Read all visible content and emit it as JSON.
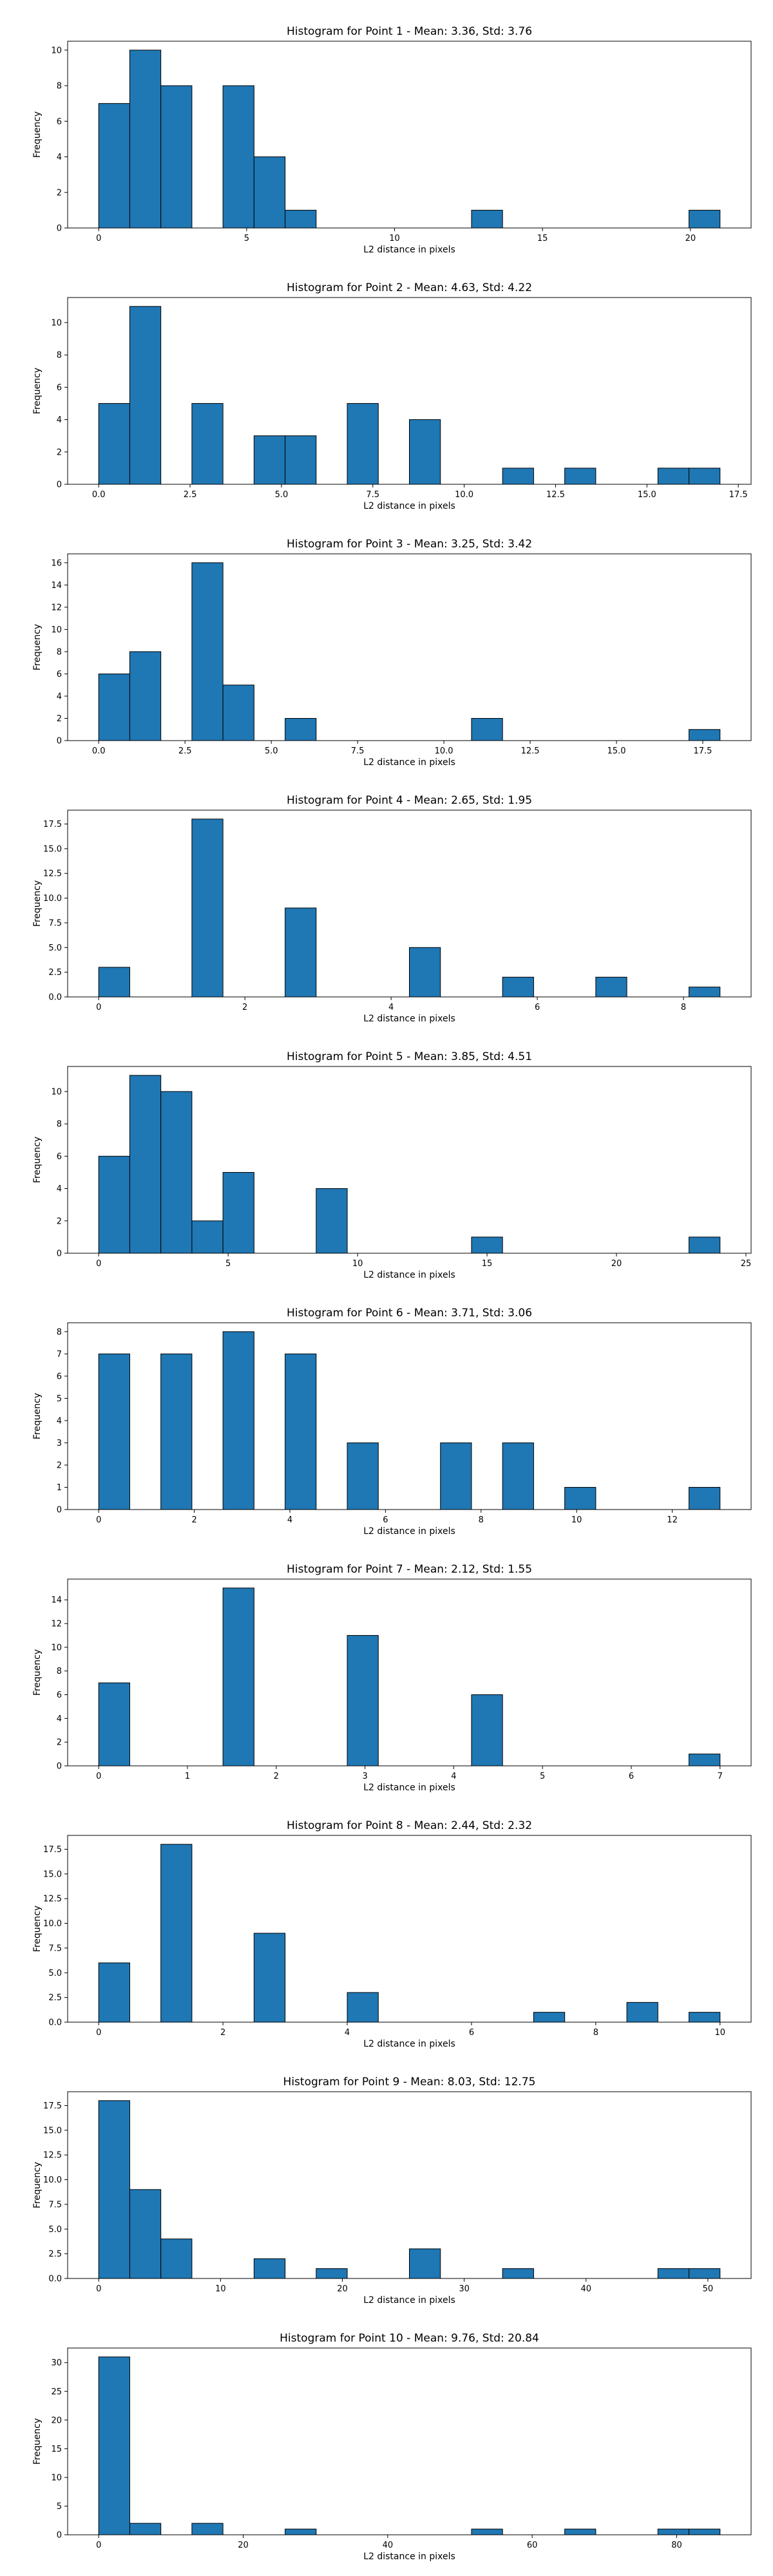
{
  "figure": {
    "background": "#ffffff",
    "bar_color": "#1f77b4",
    "edge_color": "#000000"
  },
  "chart_data": [
    {
      "type": "bar",
      "title": "Histogram for Point 1 - Mean: 3.36, Std: 3.76",
      "xlabel": "L2 distance in pixels",
      "ylabel": "Frequency",
      "xlim": [
        -1.05,
        22.05
      ],
      "ylim": [
        0,
        10.5
      ],
      "xticks": [
        0,
        5,
        10,
        15,
        20
      ],
      "xtick_labels": [
        "0",
        "5",
        "10",
        "15",
        "20"
      ],
      "yticks": [
        0,
        2,
        4,
        6,
        8,
        10
      ],
      "ytick_labels": [
        "0",
        "2",
        "4",
        "6",
        "8",
        "10"
      ],
      "bin_edges": [
        0,
        1.05,
        2.1,
        3.15,
        4.2,
        5.25,
        6.3,
        7.35,
        8.4,
        9.45,
        10.5,
        11.55,
        12.6,
        13.65,
        14.7,
        15.75,
        16.8,
        17.85,
        18.9,
        19.95,
        21.0
      ],
      "values": [
        7,
        10,
        8,
        0,
        8,
        4,
        1,
        0,
        0,
        0,
        0,
        0,
        1,
        0,
        0,
        0,
        0,
        0,
        0,
        1
      ],
      "grid": false
    },
    {
      "type": "bar",
      "title": "Histogram for Point 2 - Mean: 4.63, Std: 4.22",
      "xlabel": "L2 distance in pixels",
      "ylabel": "Frequency",
      "xlim": [
        -0.85,
        17.85
      ],
      "ylim": [
        0,
        11.55
      ],
      "xticks": [
        0,
        2.5,
        5,
        7.5,
        10,
        12.5,
        15,
        17.5
      ],
      "xtick_labels": [
        "0.0",
        "2.5",
        "5.0",
        "7.5",
        "10.0",
        "12.5",
        "15.0",
        "17.5"
      ],
      "yticks": [
        0,
        2,
        4,
        6,
        8,
        10
      ],
      "ytick_labels": [
        "0",
        "2",
        "4",
        "6",
        "8",
        "10"
      ],
      "bin_edges": [
        0,
        0.85,
        1.7,
        2.55,
        3.4,
        4.25,
        5.1,
        5.95,
        6.8,
        7.65,
        8.5,
        9.35,
        10.2,
        11.05,
        11.9,
        12.75,
        13.6,
        14.45,
        15.3,
        16.15,
        17.0
      ],
      "values": [
        5,
        11,
        0,
        5,
        0,
        3,
        3,
        0,
        5,
        0,
        4,
        0,
        0,
        1,
        0,
        1,
        0,
        0,
        1,
        1
      ],
      "grid": false
    },
    {
      "type": "bar",
      "title": "Histogram for Point 3 - Mean: 3.25, Std: 3.42",
      "xlabel": "L2 distance in pixels",
      "ylabel": "Frequency",
      "xlim": [
        -0.9,
        18.9
      ],
      "ylim": [
        0,
        16.8
      ],
      "xticks": [
        0,
        2.5,
        5,
        7.5,
        10,
        12.5,
        15,
        17.5
      ],
      "xtick_labels": [
        "0.0",
        "2.5",
        "5.0",
        "7.5",
        "10.0",
        "12.5",
        "15.0",
        "17.5"
      ],
      "yticks": [
        0,
        2,
        4,
        6,
        8,
        10,
        12,
        14,
        16
      ],
      "ytick_labels": [
        "0",
        "2",
        "4",
        "6",
        "8",
        "10",
        "12",
        "14",
        "16"
      ],
      "bin_edges": [
        0,
        0.9,
        1.8,
        2.7,
        3.6,
        4.5,
        5.4,
        6.3,
        7.2,
        8.1,
        9.0,
        9.9,
        10.8,
        11.7,
        12.6,
        13.5,
        14.4,
        15.3,
        16.2,
        17.1,
        18.0
      ],
      "values": [
        6,
        8,
        0,
        16,
        5,
        0,
        2,
        0,
        0,
        0,
        0,
        0,
        2,
        0,
        0,
        0,
        0,
        0,
        0,
        1
      ],
      "grid": false
    },
    {
      "type": "bar",
      "title": "Histogram for Point 4 - Mean: 2.65, Std: 1.95",
      "xlabel": "L2 distance in pixels",
      "ylabel": "Frequency",
      "xlim": [
        -0.425,
        8.925
      ],
      "ylim": [
        0,
        18.9
      ],
      "xticks": [
        0,
        2,
        4,
        6,
        8
      ],
      "xtick_labels": [
        "0",
        "2",
        "4",
        "6",
        "8"
      ],
      "yticks": [
        0,
        2.5,
        5,
        7.5,
        10,
        12.5,
        15,
        17.5
      ],
      "ytick_labels": [
        "0.0",
        "2.5",
        "5.0",
        "7.5",
        "10.0",
        "12.5",
        "15.0",
        "17.5"
      ],
      "bin_edges": [
        0,
        0.425,
        0.85,
        1.275,
        1.7,
        2.125,
        2.55,
        2.975,
        3.4,
        3.825,
        4.25,
        4.675,
        5.1,
        5.525,
        5.95,
        6.375,
        6.8,
        7.225,
        7.65,
        8.075,
        8.5
      ],
      "values": [
        3,
        0,
        0,
        18,
        0,
        0,
        9,
        0,
        0,
        0,
        5,
        0,
        0,
        2,
        0,
        0,
        2,
        0,
        0,
        1
      ],
      "grid": false
    },
    {
      "type": "bar",
      "title": "Histogram for Point 5 - Mean: 3.85, Std: 4.51",
      "xlabel": "L2 distance in pixels",
      "ylabel": "Frequency",
      "xlim": [
        -1.2,
        25.2
      ],
      "ylim": [
        0,
        11.55
      ],
      "xticks": [
        0,
        5,
        10,
        15,
        20,
        25
      ],
      "xtick_labels": [
        "0",
        "5",
        "10",
        "15",
        "20",
        "25"
      ],
      "yticks": [
        0,
        2,
        4,
        6,
        8,
        10
      ],
      "ytick_labels": [
        "0",
        "2",
        "4",
        "6",
        "8",
        "10"
      ],
      "bin_edges": [
        0,
        1.2,
        2.4,
        3.6,
        4.8,
        6.0,
        7.2,
        8.4,
        9.6,
        10.8,
        12.0,
        13.2,
        14.4,
        15.6,
        16.8,
        18.0,
        19.2,
        20.4,
        21.6,
        22.8,
        24.0
      ],
      "values": [
        6,
        11,
        10,
        2,
        5,
        0,
        0,
        4,
        0,
        0,
        0,
        0,
        1,
        0,
        0,
        0,
        0,
        0,
        0,
        1
      ],
      "grid": false
    },
    {
      "type": "bar",
      "title": "Histogram for Point 6 - Mean: 3.71, Std: 3.06",
      "xlabel": "L2 distance in pixels",
      "ylabel": "Frequency",
      "xlim": [
        -0.65,
        13.65
      ],
      "ylim": [
        0,
        8.4
      ],
      "xticks": [
        0,
        2,
        4,
        6,
        8,
        10,
        12
      ],
      "xtick_labels": [
        "0",
        "2",
        "4",
        "6",
        "8",
        "10",
        "12"
      ],
      "yticks": [
        0,
        1,
        2,
        3,
        4,
        5,
        6,
        7,
        8
      ],
      "ytick_labels": [
        "0",
        "1",
        "2",
        "3",
        "4",
        "5",
        "6",
        "7",
        "8"
      ],
      "bin_edges": [
        0,
        0.65,
        1.3,
        1.95,
        2.6,
        3.25,
        3.9,
        4.55,
        5.2,
        5.85,
        6.5,
        7.15,
        7.8,
        8.45,
        9.1,
        9.75,
        10.4,
        11.05,
        11.7,
        12.35,
        13.0
      ],
      "values": [
        7,
        0,
        7,
        0,
        8,
        0,
        7,
        0,
        3,
        0,
        0,
        3,
        0,
        3,
        0,
        1,
        0,
        0,
        0,
        1
      ],
      "grid": false
    },
    {
      "type": "bar",
      "title": "Histogram for Point 7 - Mean: 2.12, Std: 1.55",
      "xlabel": "L2 distance in pixels",
      "ylabel": "Frequency",
      "xlim": [
        -0.35,
        7.35
      ],
      "ylim": [
        0,
        15.75
      ],
      "xticks": [
        0,
        1,
        2,
        3,
        4,
        5,
        6,
        7
      ],
      "xtick_labels": [
        "0",
        "1",
        "2",
        "3",
        "4",
        "5",
        "6",
        "7"
      ],
      "yticks": [
        0,
        2,
        4,
        6,
        8,
        10,
        12,
        14
      ],
      "ytick_labels": [
        "0",
        "2",
        "4",
        "6",
        "8",
        "10",
        "12",
        "14"
      ],
      "bin_edges": [
        0,
        0.35,
        0.7,
        1.05,
        1.4,
        1.75,
        2.1,
        2.45,
        2.8,
        3.15,
        3.5,
        3.85,
        4.2,
        4.55,
        4.9,
        5.25,
        5.6,
        5.95,
        6.3,
        6.65,
        7.0
      ],
      "values": [
        7,
        0,
        0,
        0,
        15,
        0,
        0,
        0,
        11,
        0,
        0,
        0,
        6,
        0,
        0,
        0,
        0,
        0,
        0,
        1
      ],
      "grid": false
    },
    {
      "type": "bar",
      "title": "Histogram for Point 8 - Mean: 2.44, Std: 2.32",
      "xlabel": "L2 distance in pixels",
      "ylabel": "Frequency",
      "xlim": [
        -0.5,
        10.5
      ],
      "ylim": [
        0,
        18.9
      ],
      "xticks": [
        0,
        2,
        4,
        6,
        8,
        10
      ],
      "xtick_labels": [
        "0",
        "2",
        "4",
        "6",
        "8",
        "10"
      ],
      "yticks": [
        0,
        2.5,
        5,
        7.5,
        10,
        12.5,
        15,
        17.5
      ],
      "ytick_labels": [
        "0.0",
        "2.5",
        "5.0",
        "7.5",
        "10.0",
        "12.5",
        "15.0",
        "17.5"
      ],
      "bin_edges": [
        0,
        0.5,
        1.0,
        1.5,
        2.0,
        2.5,
        3.0,
        3.5,
        4.0,
        4.5,
        5.0,
        5.5,
        6.0,
        6.5,
        7.0,
        7.5,
        8.0,
        8.5,
        9.0,
        9.5,
        10.0
      ],
      "values": [
        6,
        0,
        18,
        0,
        0,
        9,
        0,
        0,
        3,
        0,
        0,
        0,
        0,
        0,
        1,
        0,
        0,
        2,
        0,
        1
      ],
      "grid": false
    },
    {
      "type": "bar",
      "title": "Histogram for Point 9 - Mean: 8.03, Std: 12.75",
      "xlabel": "L2 distance in pixels",
      "ylabel": "Frequency",
      "xlim": [
        -2.55,
        53.55
      ],
      "ylim": [
        0,
        18.9
      ],
      "xticks": [
        0,
        10,
        20,
        30,
        40,
        50
      ],
      "xtick_labels": [
        "0",
        "10",
        "20",
        "30",
        "40",
        "50"
      ],
      "yticks": [
        0,
        2.5,
        5,
        7.5,
        10,
        12.5,
        15,
        17.5
      ],
      "ytick_labels": [
        "0.0",
        "2.5",
        "5.0",
        "7.5",
        "10.0",
        "12.5",
        "15.0",
        "17.5"
      ],
      "bin_edges": [
        0,
        2.55,
        5.1,
        7.65,
        10.2,
        12.75,
        15.3,
        17.85,
        20.4,
        22.95,
        25.5,
        28.05,
        30.6,
        33.15,
        35.7,
        38.25,
        40.8,
        43.35,
        45.9,
        48.45,
        51.0
      ],
      "values": [
        18,
        9,
        4,
        0,
        0,
        2,
        0,
        1,
        0,
        0,
        3,
        0,
        0,
        1,
        0,
        0,
        0,
        0,
        1,
        1
      ],
      "grid": false
    },
    {
      "type": "bar",
      "title": "Histogram for Point 10 - Mean: 9.76, Std: 20.84",
      "xlabel": "L2 distance in pixels",
      "ylabel": "Frequency",
      "xlim": [
        -4.3,
        90.3
      ],
      "ylim": [
        0,
        32.55
      ],
      "xticks": [
        0,
        20,
        40,
        60,
        80
      ],
      "xtick_labels": [
        "0",
        "20",
        "40",
        "60",
        "80"
      ],
      "yticks": [
        0,
        5,
        10,
        15,
        20,
        25,
        30
      ],
      "ytick_labels": [
        "0",
        "5",
        "10",
        "15",
        "20",
        "25",
        "30"
      ],
      "bin_edges": [
        0,
        4.3,
        8.6,
        12.9,
        17.2,
        21.5,
        25.8,
        30.1,
        34.4,
        38.7,
        43.0,
        47.3,
        51.6,
        55.9,
        60.2,
        64.5,
        68.8,
        73.1,
        77.4,
        81.7,
        86.0
      ],
      "values": [
        31,
        2,
        0,
        2,
        0,
        0,
        1,
        0,
        0,
        0,
        0,
        0,
        1,
        0,
        0,
        1,
        0,
        0,
        1,
        1
      ],
      "grid": false
    }
  ]
}
